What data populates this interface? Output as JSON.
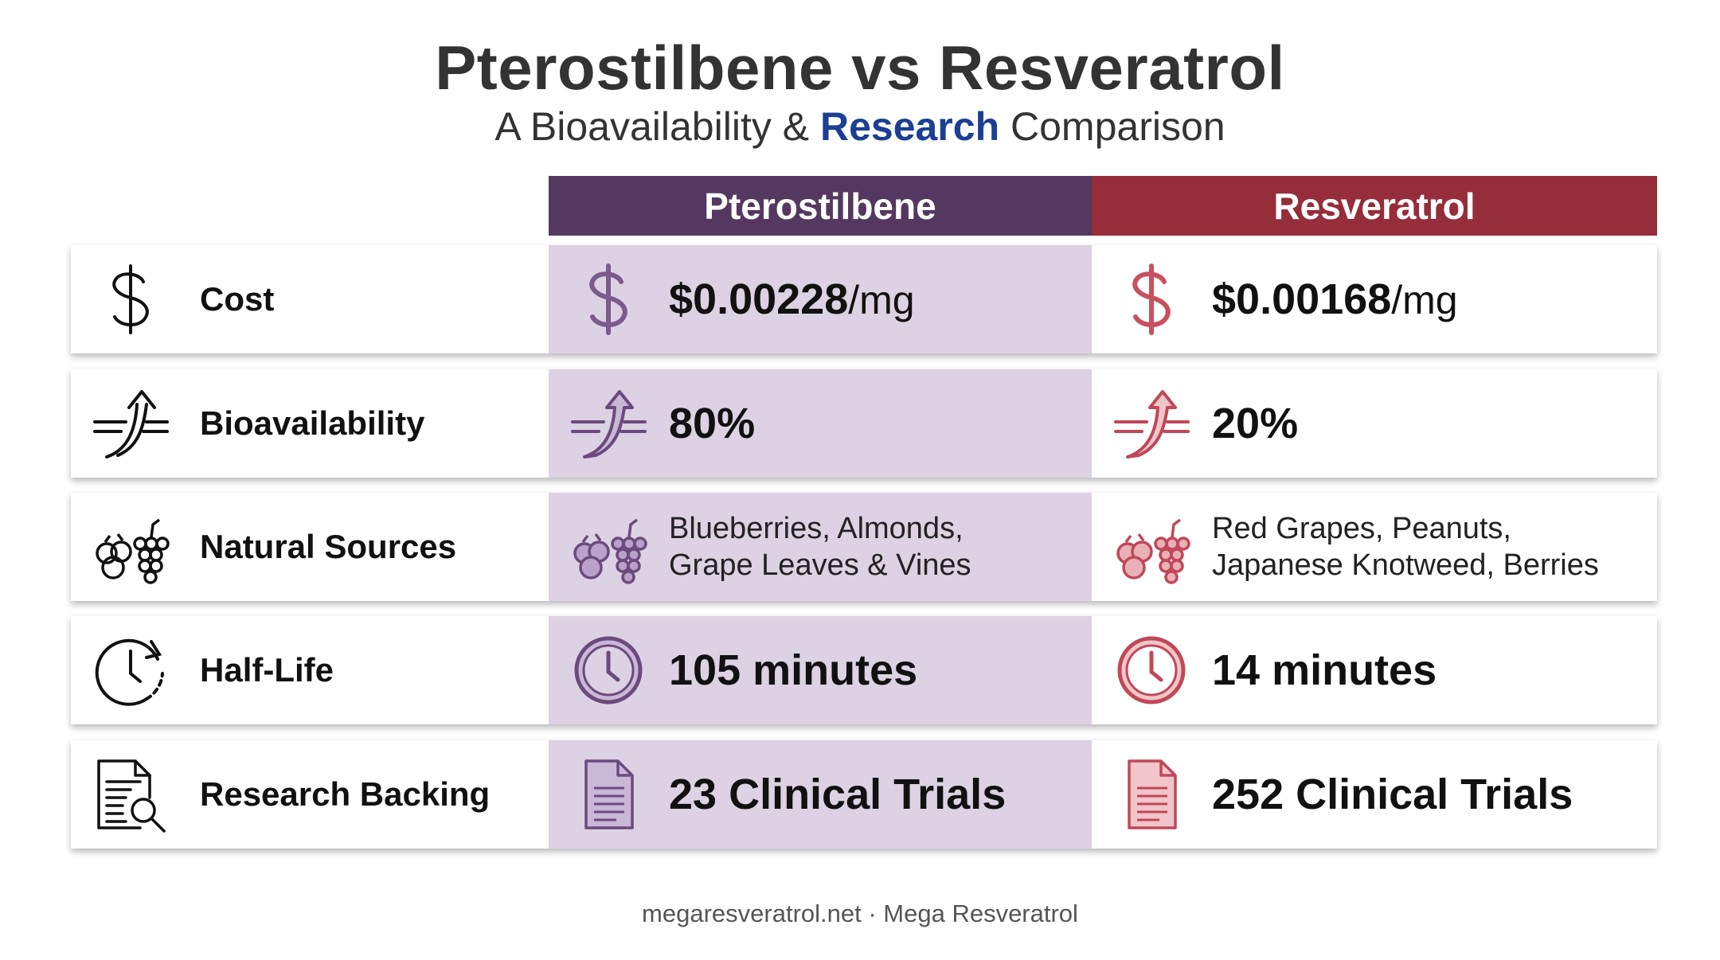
{
  "header": {
    "title": "Pterostilbene vs Resveratrol",
    "subtitle_pre": "A Bioavailability & ",
    "subtitle_highlight": "Research",
    "subtitle_post": " Comparison"
  },
  "columns": {
    "pterostilbene": "Pterostilbene",
    "resveratrol": "Resveratrol"
  },
  "colors": {
    "pterostilbene_header": "#54385f",
    "resveratrol_header": "#962d3a",
    "pterostilbene_cell": "#dcd2e3",
    "highlight_text": "#1c3f94"
  },
  "rows": [
    {
      "label": "Cost",
      "icon": "dollar-icon",
      "pterostilbene": {
        "value": "$0.00228",
        "unit": "/mg"
      },
      "resveratrol": {
        "value": "$0.00168",
        "unit": "/mg"
      }
    },
    {
      "label": "Bioavailability",
      "icon": "absorption-arrow-icon",
      "pterostilbene": {
        "value": "80%"
      },
      "resveratrol": {
        "value": "20%"
      }
    },
    {
      "label": "Natural Sources",
      "icon": "berries-grapes-icon",
      "pterostilbene": {
        "line1": "Blueberries, Almonds,",
        "line2": "Grape Leaves & Vines"
      },
      "resveratrol": {
        "line1": "Red Grapes, Peanuts,",
        "line2": "Japanese Knotweed, Berries"
      }
    },
    {
      "label": "Half-Life",
      "icon": "clock-icon",
      "pterostilbene": {
        "value": "105 minutes"
      },
      "resveratrol": {
        "value": "14 minutes"
      }
    },
    {
      "label": "Research Backing",
      "icon": "document-icon",
      "pterostilbene": {
        "value": "23 Clinical Trials"
      },
      "resveratrol": {
        "value": "252 Clinical Trials"
      }
    }
  ],
  "footer": "megaresveratrol.net · Mega Resveratrol"
}
